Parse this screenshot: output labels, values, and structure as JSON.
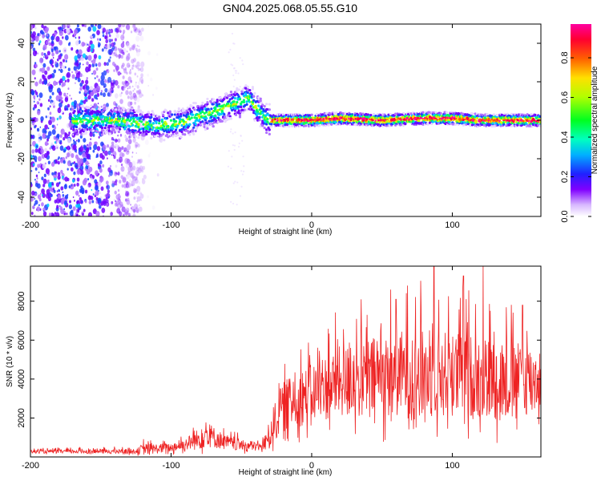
{
  "title": "GN04.2025.068.05.55.G10",
  "colors": {
    "snr_line": "#ee2222",
    "spectrogram_cmap": [
      "#ffffff",
      "#e8d8ff",
      "#b070ff",
      "#7000ff",
      "#2040ff",
      "#00c8ff",
      "#00ff60",
      "#c8ff00",
      "#ffd000",
      "#ff6000",
      "#ff0040",
      "#ff00a0"
    ]
  },
  "chart_data": [
    {
      "type": "heatmap",
      "name": "spectrogram",
      "xlabel": "Height of straight line (km)",
      "ylabel": "Frequency (Hz)",
      "xlim": [
        -200,
        163
      ],
      "ylim": [
        -50,
        50
      ],
      "x_ticks": [
        -200,
        -100,
        0,
        100
      ],
      "y_ticks": [
        -40,
        -20,
        0,
        20,
        40
      ],
      "colorbar": {
        "label": "Normalized spectral amplitude",
        "range": [
          0,
          0.97
        ],
        "ticks": [
          "0.0",
          "0.2",
          "0.4",
          "0.6",
          "0.8"
        ],
        "tick_values": [
          0.0,
          0.2,
          0.4,
          0.6,
          0.8
        ]
      },
      "ridge": {
        "x": [
          -165,
          -140,
          -120,
          -110,
          -100,
          -90,
          -80,
          -70,
          -60,
          -50,
          -45,
          -40,
          -35,
          -30,
          -20,
          0,
          20,
          50,
          80,
          100,
          120,
          140,
          163
        ],
        "frequency": [
          0,
          0,
          -2,
          -3,
          -2,
          -1,
          2,
          4,
          7,
          10,
          12,
          7,
          3,
          0,
          0,
          0,
          1,
          0,
          1,
          1,
          0,
          0,
          0
        ]
      },
      "scatter_region": {
        "x": [
          -200,
          -120
        ],
        "frequency": [
          -50,
          50
        ]
      },
      "grid": false
    },
    {
      "type": "line",
      "name": "snr",
      "xlabel": "Height of straight line (km)",
      "ylabel": "SNR (10 * v/v)",
      "xlim": [
        -200,
        163
      ],
      "ylim": [
        0,
        9800
      ],
      "x_ticks": [
        -200,
        -100,
        0,
        100
      ],
      "y_ticks": [
        2000,
        4000,
        6000,
        8000
      ],
      "envelope": {
        "x": [
          -200,
          -150,
          -125,
          -120,
          -100,
          -90,
          -80,
          -75,
          -70,
          -60,
          -50,
          -35,
          -30,
          -25,
          -20,
          0,
          20,
          40,
          60,
          80,
          100,
          120,
          140,
          163
        ],
        "baseline": [
          250,
          250,
          250,
          300,
          400,
          550,
          750,
          1000,
          850,
          600,
          500,
          450,
          900,
          1700,
          2200,
          2800,
          3300,
          3400,
          3600,
          3500,
          3600,
          3400,
          3300,
          3500
        ],
        "amplitude": [
          100,
          150,
          150,
          350,
          300,
          400,
          700,
          900,
          700,
          450,
          350,
          300,
          900,
          1400,
          1600,
          1900,
          2300,
          2600,
          2800,
          2900,
          2800,
          2700,
          2500,
          2200
        ]
      },
      "peaks": [
        {
          "x": 87,
          "y": 9800
        },
        {
          "x": 122,
          "y": 9800
        },
        {
          "x": 108,
          "y": 9300
        },
        {
          "x": 60,
          "y": 8100
        },
        {
          "x": 150,
          "y": 7800
        }
      ],
      "grid": false
    }
  ]
}
